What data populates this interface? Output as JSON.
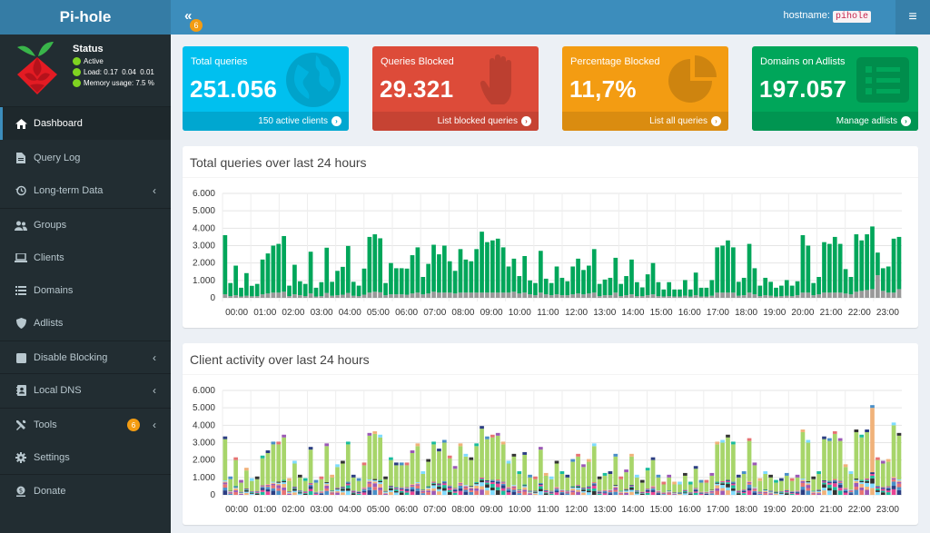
{
  "header": {
    "brand": "Pi-hole",
    "collapse_icon": "«",
    "notification_count": "6",
    "hostname_label": "hostname:",
    "hostname": "pihole",
    "menu_icon": "≡"
  },
  "status": {
    "title": "Status",
    "active": "Active",
    "load_label": "Load:",
    "load": "0.17  0.04  0.01",
    "memory_label": "Memory usage:",
    "memory": "7.5 %"
  },
  "nav": [
    {
      "label": "Dashboard",
      "icon": "home-icon"
    },
    {
      "label": "Query Log",
      "icon": "file-icon"
    },
    {
      "label": "Long-term Data",
      "icon": "history-icon"
    },
    {
      "label": "Groups",
      "icon": "users-icon"
    },
    {
      "label": "Clients",
      "icon": "laptop-icon"
    },
    {
      "label": "Domains",
      "icon": "list-icon"
    },
    {
      "label": "Adlists",
      "icon": "shield-icon"
    },
    {
      "label": "Disable Blocking",
      "icon": "stop-icon"
    },
    {
      "label": "Local DNS",
      "icon": "address-book-icon"
    },
    {
      "label": "Tools",
      "icon": "tools-icon",
      "badge": "6"
    },
    {
      "label": "Settings",
      "icon": "gear-icon"
    },
    {
      "label": "Donate",
      "icon": "donate-icon"
    }
  ],
  "boxes": [
    {
      "label": "Total queries",
      "value": "251.056",
      "footer": "150 active clients",
      "icon": "globe-icon",
      "color": "#00c0ef"
    },
    {
      "label": "Queries Blocked",
      "value": "29.321",
      "footer": "List blocked queries",
      "icon": "hand-icon",
      "color": "#dd4b39"
    },
    {
      "label": "Percentage Blocked",
      "value": "11,7%",
      "footer": "List all queries",
      "icon": "pie-icon",
      "color": "#f39c12"
    },
    {
      "label": "Domains on Adlists",
      "value": "197.057",
      "footer": "Manage adlists",
      "icon": "list-alt-icon",
      "color": "#00a65a"
    }
  ],
  "charts": {
    "queries_title": "Total queries over last 24 hours",
    "clients_title": "Client activity over last 24 hours"
  },
  "chart_data": [
    {
      "type": "bar",
      "title": "Total queries over last 24 hours",
      "ylim": [
        0,
        6000
      ],
      "yticks": [
        "0",
        "1.000",
        "2.000",
        "3.000",
        "4.000",
        "5.000",
        "6.000"
      ],
      "xticks": [
        "00:00",
        "01:00",
        "02:00",
        "03:00",
        "04:00",
        "05:00",
        "06:00",
        "07:00",
        "08:00",
        "09:00",
        "10:00",
        "11:00",
        "12:00",
        "13:00",
        "14:00",
        "15:00",
        "16:00",
        "17:00",
        "18:00",
        "19:00",
        "20:00",
        "21:00",
        "22:00",
        "23:00"
      ],
      "colors": {
        "permitted": "#00a65a",
        "blocked": "#999999"
      },
      "series": [
        {
          "name": "permitted",
          "values": [
            3400,
            750,
            1700,
            500,
            1300,
            600,
            700,
            2000,
            2300,
            2700,
            2800,
            3200,
            600,
            1700,
            800,
            700,
            2400,
            500,
            800,
            2600,
            800,
            1400,
            1600,
            2700,
            800,
            600,
            1500,
            3200,
            3300,
            3100,
            700,
            1800,
            1500,
            1500,
            1500,
            2200,
            2600,
            1000,
            1700,
            2700,
            2200,
            2700,
            1800,
            1300,
            2500,
            1900,
            1800,
            2500,
            3500,
            2900,
            3000,
            3100,
            2600,
            1500,
            1900,
            1000,
            2100,
            800,
            700,
            2400,
            900,
            700,
            1600,
            1000,
            800,
            1600,
            2000,
            1400,
            1600,
            2500,
            700,
            900,
            1000,
            2000,
            700,
            1100,
            2000,
            800,
            500,
            1200,
            1800,
            800,
            400,
            800,
            400,
            400,
            900,
            400,
            1300,
            500,
            500,
            900,
            2600,
            2700,
            3000,
            2600,
            800,
            1000,
            2800,
            1500,
            600,
            1000,
            800,
            500,
            600,
            900,
            600,
            800,
            3300,
            2700,
            700,
            1000,
            2900,
            2800,
            3200,
            2800,
            1400,
            1000,
            3300,
            2900,
            3200,
            3600,
            1300,
            1300,
            1500,
            3100,
            3000
          ]
        },
        {
          "name": "blocked",
          "values": [
            200,
            100,
            150,
            80,
            120,
            90,
            100,
            200,
            250,
            300,
            300,
            350,
            100,
            200,
            150,
            100,
            250,
            80,
            100,
            280,
            120,
            150,
            180,
            280,
            120,
            100,
            180,
            300,
            350,
            320,
            150,
            200,
            200,
            200,
            180,
            250,
            300,
            200,
            250,
            350,
            300,
            300,
            300,
            250,
            300,
            300,
            300,
            300,
            300,
            300,
            300,
            300,
            300,
            300,
            350,
            250,
            300,
            200,
            150,
            300,
            200,
            150,
            200,
            150,
            150,
            200,
            250,
            200,
            250,
            300,
            100,
            150,
            150,
            300,
            100,
            150,
            200,
            100,
            100,
            150,
            200,
            100,
            80,
            100,
            80,
            80,
            120,
            80,
            150,
            80,
            80,
            120,
            300,
            300,
            300,
            300,
            120,
            150,
            300,
            200,
            100,
            150,
            120,
            80,
            100,
            120,
            100,
            150,
            300,
            300,
            150,
            200,
            300,
            300,
            300,
            300,
            250,
            200,
            350,
            400,
            450,
            500,
            1300,
            400,
            300,
            300,
            500
          ]
        }
      ]
    },
    {
      "type": "bar",
      "title": "Client activity over last 24 hours",
      "ylim": [
        0,
        6000
      ],
      "yticks": [
        "0",
        "1.000",
        "2.000",
        "3.000",
        "4.000",
        "5.000",
        "6.000"
      ],
      "xticks": [
        "00:00",
        "01:00",
        "02:00",
        "03:00",
        "04:00",
        "05:00",
        "06:00",
        "07:00",
        "08:00",
        "09:00",
        "10:00",
        "11:00",
        "12:00",
        "13:00",
        "14:00",
        "15:00",
        "16:00",
        "17:00",
        "18:00",
        "19:00",
        "20:00",
        "21:00",
        "22:00",
        "23:00"
      ],
      "palette": [
        "#a7d56a",
        "#2c3e82",
        "#4a8fc7",
        "#e67373",
        "#9b59b6",
        "#f0b27a",
        "#7fdbff",
        "#333333",
        "#1abc9c",
        "#e84393"
      ],
      "series_totals": [
        3200,
        900,
        2000,
        700,
        1400,
        800,
        900,
        2100,
        2400,
        2900,
        2900,
        3300,
        800,
        1800,
        1000,
        800,
        2600,
        700,
        900,
        2800,
        1000,
        1600,
        1800,
        2900,
        1000,
        800,
        1700,
        3400,
        3500,
        3300,
        900,
        2000,
        1700,
        1700,
        1700,
        2400,
        2800,
        1200,
        1900,
        2900,
        2500,
        3000,
        2100,
        1500,
        2800,
        2200,
        2000,
        2800,
        3800,
        3200,
        3300,
        3400,
        2900,
        1800,
        2200,
        1200,
        2300,
        1000,
        900,
        2600,
        1100,
        900,
        1800,
        1200,
        1000,
        1900,
        2200,
        1600,
        1900,
        2800,
        900,
        1100,
        1200,
        2200,
        900,
        1300,
        2200,
        1000,
        700,
        1400,
        2000,
        1000,
        600,
        1000,
        600,
        600,
        1100,
        600,
        1500,
        700,
        700,
        1100,
        2900,
        3000,
        3300,
        2900,
        1000,
        1200,
        3100,
        1700,
        800,
        1200,
        1000,
        700,
        800,
        1100,
        800,
        1000,
        3600,
        3000,
        900,
        1200,
        3200,
        3100,
        3500,
        3100,
        1600,
        1200,
        3600,
        3300,
        3600,
        5000,
        2000,
        1800,
        1900,
        4000,
        3400
      ]
    }
  ]
}
